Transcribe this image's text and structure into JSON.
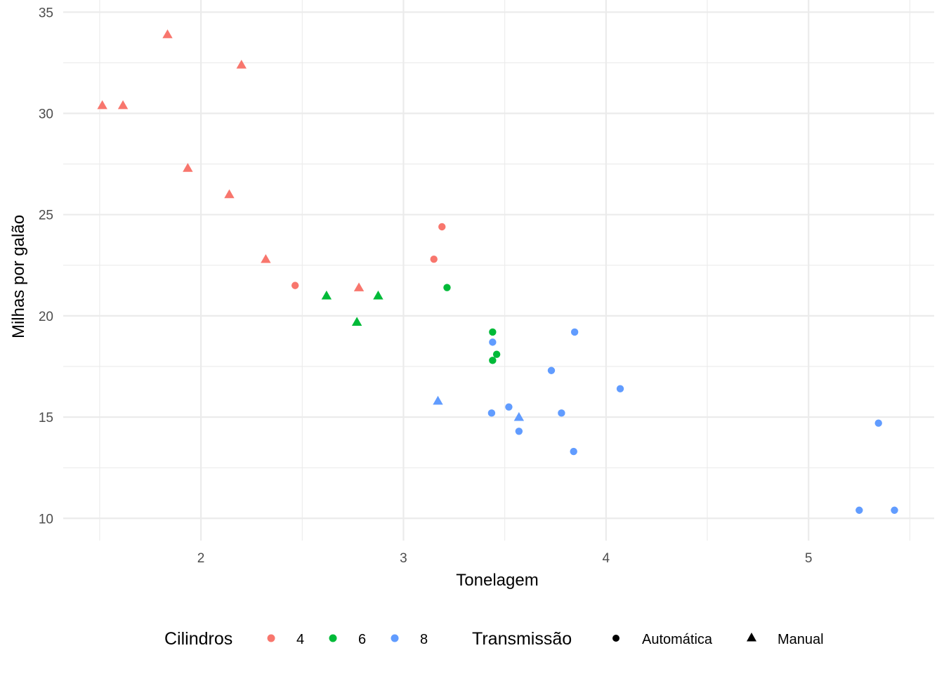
{
  "chart_data": {
    "type": "scatter",
    "title": "",
    "xlabel": "Tonelagem",
    "ylabel": "Milhas por galão",
    "xlim": [
      1.32,
      5.62
    ],
    "ylim": [
      8.9,
      35.6
    ],
    "xticks": [
      2,
      3,
      4,
      5
    ],
    "xtick_labels": [
      "2",
      "3",
      "4",
      "5"
    ],
    "yticks": [
      10,
      15,
      20,
      25,
      30,
      35
    ],
    "ytick_labels": [
      "10",
      "15",
      "20",
      "25",
      "30",
      "35"
    ],
    "grid": true,
    "legend_position": "bottom",
    "color_legend": {
      "title": "Cilindros",
      "items": [
        {
          "label": "4",
          "color": "#F8766D"
        },
        {
          "label": "6",
          "color": "#00BA38"
        },
        {
          "label": "8",
          "color": "#619CFF"
        }
      ]
    },
    "shape_legend": {
      "title": "Transmissão",
      "items": [
        {
          "label": "Automática",
          "shape": "circle"
        },
        {
          "label": "Manual",
          "shape": "triangle"
        }
      ]
    },
    "points": [
      {
        "x": 2.62,
        "y": 21.0,
        "cyl": "6",
        "am": "Manual"
      },
      {
        "x": 2.875,
        "y": 21.0,
        "cyl": "6",
        "am": "Manual"
      },
      {
        "x": 2.32,
        "y": 22.8,
        "cyl": "4",
        "am": "Manual"
      },
      {
        "x": 3.215,
        "y": 21.4,
        "cyl": "6",
        "am": "Automática"
      },
      {
        "x": 3.44,
        "y": 18.7,
        "cyl": "8",
        "am": "Automática"
      },
      {
        "x": 3.46,
        "y": 18.1,
        "cyl": "6",
        "am": "Automática"
      },
      {
        "x": 3.57,
        "y": 14.3,
        "cyl": "8",
        "am": "Automática"
      },
      {
        "x": 3.19,
        "y": 24.4,
        "cyl": "4",
        "am": "Automática"
      },
      {
        "x": 3.15,
        "y": 22.8,
        "cyl": "4",
        "am": "Automática"
      },
      {
        "x": 3.44,
        "y": 19.2,
        "cyl": "6",
        "am": "Automática"
      },
      {
        "x": 3.44,
        "y": 17.8,
        "cyl": "6",
        "am": "Automática"
      },
      {
        "x": 4.07,
        "y": 16.4,
        "cyl": "8",
        "am": "Automática"
      },
      {
        "x": 3.73,
        "y": 17.3,
        "cyl": "8",
        "am": "Automática"
      },
      {
        "x": 3.78,
        "y": 15.2,
        "cyl": "8",
        "am": "Automática"
      },
      {
        "x": 5.25,
        "y": 10.4,
        "cyl": "8",
        "am": "Automática"
      },
      {
        "x": 5.424,
        "y": 10.4,
        "cyl": "8",
        "am": "Automática"
      },
      {
        "x": 5.345,
        "y": 14.7,
        "cyl": "8",
        "am": "Automática"
      },
      {
        "x": 2.2,
        "y": 32.4,
        "cyl": "4",
        "am": "Manual"
      },
      {
        "x": 1.615,
        "y": 30.4,
        "cyl": "4",
        "am": "Manual"
      },
      {
        "x": 1.835,
        "y": 33.9,
        "cyl": "4",
        "am": "Manual"
      },
      {
        "x": 2.465,
        "y": 21.5,
        "cyl": "4",
        "am": "Automática"
      },
      {
        "x": 3.52,
        "y": 15.5,
        "cyl": "8",
        "am": "Automática"
      },
      {
        "x": 3.435,
        "y": 15.2,
        "cyl": "8",
        "am": "Automática"
      },
      {
        "x": 3.84,
        "y": 13.3,
        "cyl": "8",
        "am": "Automática"
      },
      {
        "x": 3.845,
        "y": 19.2,
        "cyl": "8",
        "am": "Automática"
      },
      {
        "x": 1.935,
        "y": 27.3,
        "cyl": "4",
        "am": "Manual"
      },
      {
        "x": 2.14,
        "y": 26.0,
        "cyl": "4",
        "am": "Manual"
      },
      {
        "x": 1.513,
        "y": 30.4,
        "cyl": "4",
        "am": "Manual"
      },
      {
        "x": 3.17,
        "y": 15.8,
        "cyl": "8",
        "am": "Manual"
      },
      {
        "x": 2.77,
        "y": 19.7,
        "cyl": "6",
        "am": "Manual"
      },
      {
        "x": 3.57,
        "y": 15.0,
        "cyl": "8",
        "am": "Manual"
      },
      {
        "x": 2.78,
        "y": 21.4,
        "cyl": "4",
        "am": "Manual"
      }
    ]
  }
}
